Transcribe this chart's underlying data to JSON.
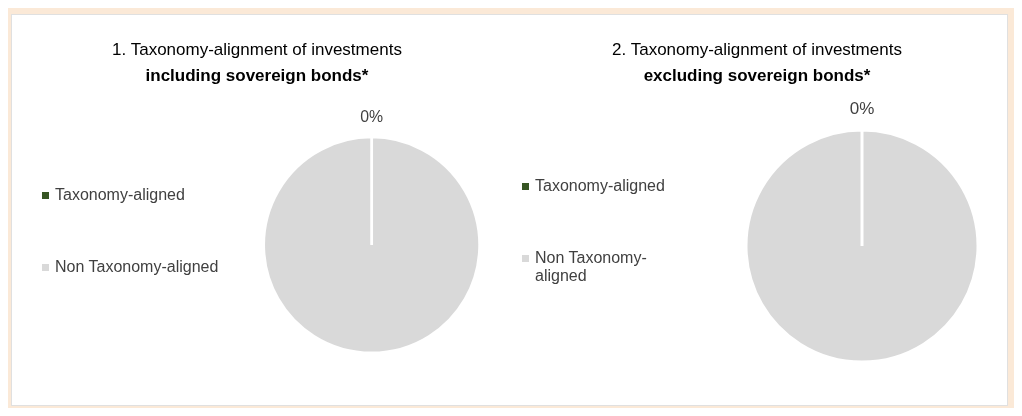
{
  "chart_data": [
    {
      "type": "pie",
      "title": "1. Taxonomy-alignment of investments",
      "subtitle": "including sovereign bonds*",
      "categories": [
        "Taxonomy-aligned",
        "Non Taxonomy-aligned"
      ],
      "values": [
        0,
        100
      ],
      "colors": [
        "#375623",
        "#d9d9d9"
      ],
      "value_labels": [
        "0%",
        null
      ],
      "legend": "left"
    },
    {
      "type": "pie",
      "title": "2. Taxonomy-alignment of investments",
      "subtitle": "excluding sovereign bonds*",
      "categories": [
        "Taxonomy-aligned",
        "Non Taxonomy-aligned"
      ],
      "values": [
        0,
        100
      ],
      "colors": [
        "#375623",
        "#d9d9d9"
      ],
      "value_labels": [
        "0%",
        null
      ],
      "legend": "left"
    }
  ]
}
